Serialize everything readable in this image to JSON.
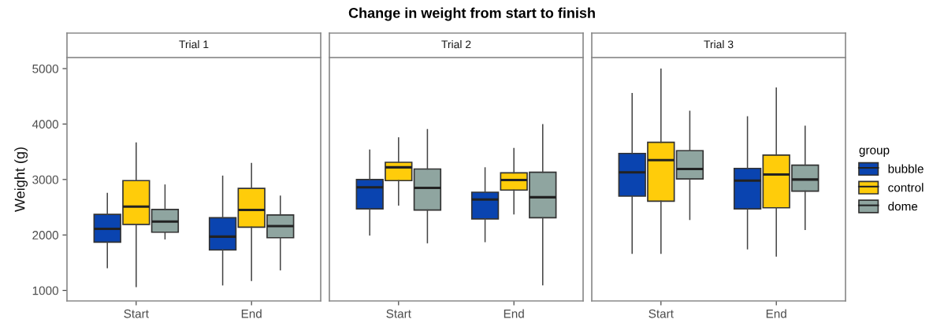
{
  "chart_data": [
    {
      "type": "box",
      "subtitle": "Trial 1",
      "ylabel": "Weight (g)",
      "categories": [
        "Start",
        "End"
      ],
      "ylim": [
        810,
        5200
      ],
      "yticks": [
        1000,
        2000,
        3000,
        4000,
        5000
      ],
      "grid": false,
      "series": [
        {
          "color": "#0a44b0",
          "boxes": [
            {
              "low": 1410,
              "q1": 1870,
              "median": 2110,
              "q3": 2370,
              "high": 2750
            },
            {
              "low": 1100,
              "q1": 1730,
              "median": 1970,
              "q3": 2310,
              "high": 3060
            }
          ]
        },
        {
          "color": "#ffcc0a",
          "boxes": [
            {
              "low": 1070,
              "q1": 2190,
              "median": 2510,
              "q3": 2980,
              "high": 3660
            },
            {
              "low": 1180,
              "q1": 2140,
              "median": 2450,
              "q3": 2840,
              "high": 3290
            }
          ]
        },
        {
          "color": "#8fa5a0",
          "boxes": [
            {
              "low": 1930,
              "q1": 2050,
              "median": 2240,
              "q3": 2460,
              "high": 2900
            },
            {
              "low": 1370,
              "q1": 1950,
              "median": 2160,
              "q3": 2360,
              "high": 2700
            }
          ]
        }
      ]
    },
    {
      "type": "box",
      "title": "Change in weight from start to finish",
      "subtitle": "Trial 2",
      "categories": [
        "Start",
        "End"
      ],
      "ylim": [
        810,
        5200
      ],
      "yticks": [
        1000,
        2000,
        3000,
        4000,
        5000
      ],
      "tick_labels": "x",
      "grid": false,
      "series": [
        {
          "color": "#0a44b0",
          "boxes": [
            {
              "low": 2000,
              "q1": 2470,
              "median": 2860,
              "q3": 3000,
              "high": 3530
            },
            {
              "low": 1880,
              "q1": 2290,
              "median": 2640,
              "q3": 2770,
              "high": 3210
            }
          ]
        },
        {
          "color": "#ffcc0a",
          "boxes": [
            {
              "low": 2540,
              "q1": 2980,
              "median": 3220,
              "q3": 3310,
              "high": 3750
            },
            {
              "low": 2380,
              "q1": 2810,
              "median": 2990,
              "q3": 3120,
              "high": 3560
            }
          ]
        },
        {
          "color": "#8fa5a0",
          "boxes": [
            {
              "low": 1860,
              "q1": 2450,
              "median": 2850,
              "q3": 3190,
              "high": 3900
            },
            {
              "low": 1100,
              "q1": 2310,
              "median": 2680,
              "q3": 3130,
              "high": 3990
            }
          ]
        }
      ]
    },
    {
      "type": "box",
      "subtitle": "Trial 3",
      "categories": [
        "Start",
        "End"
      ],
      "ylim": [
        810,
        5200
      ],
      "yticks": [
        1000,
        2000,
        3000,
        4000,
        5000
      ],
      "tick_labels": "x",
      "grid": false,
      "legend": "right",
      "legend_title": "group",
      "series": [
        {
          "name": "bubble",
          "color": "#0a44b0",
          "boxes": [
            {
              "low": 1670,
              "q1": 2700,
              "median": 3130,
              "q3": 3470,
              "high": 4550
            },
            {
              "low": 1750,
              "q1": 2470,
              "median": 2980,
              "q3": 3200,
              "high": 4130
            }
          ]
        },
        {
          "name": "control",
          "color": "#ffcc0a",
          "boxes": [
            {
              "low": 1670,
              "q1": 2610,
              "median": 3350,
              "q3": 3670,
              "high": 4990
            },
            {
              "low": 1620,
              "q1": 2490,
              "median": 3090,
              "q3": 3440,
              "high": 4650
            }
          ]
        },
        {
          "name": "dome",
          "color": "#8fa5a0",
          "boxes": [
            {
              "low": 2280,
              "q1": 3010,
              "median": 3190,
              "q3": 3520,
              "high": 4230
            },
            {
              "low": 2100,
              "q1": 2790,
              "median": 3000,
              "q3": 3260,
              "high": 3960
            }
          ]
        }
      ]
    }
  ]
}
